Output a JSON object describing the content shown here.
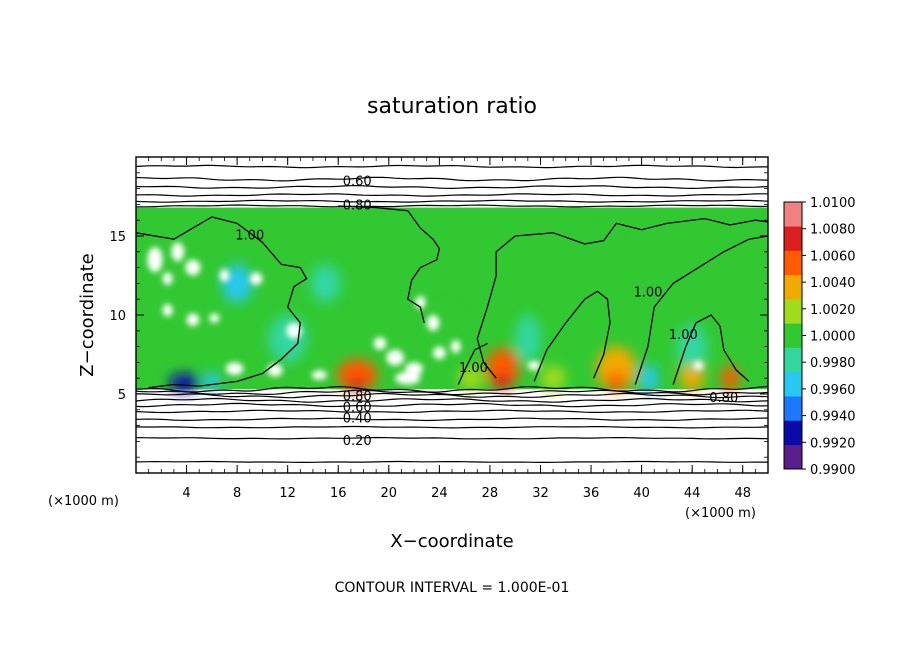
{
  "chart_data": {
    "type": "heatmap",
    "title": "saturation ratio",
    "xlabel": "X−coordinate",
    "ylabel": "Z−coordinate",
    "x_unit": "(×1000 m)",
    "y_unit": "(×1000 m)",
    "xlim": [
      0,
      50
    ],
    "ylim": [
      0,
      20
    ],
    "xticks": [
      4,
      8,
      12,
      16,
      20,
      24,
      28,
      32,
      36,
      40,
      44,
      48
    ],
    "yticks": [
      5,
      10,
      15
    ],
    "colorbar": {
      "levels": [
        0.99,
        0.992,
        0.994,
        0.996,
        0.998,
        1.0,
        1.002,
        1.004,
        1.006,
        1.008,
        1.01
      ],
      "tick_labels": [
        "0.9900",
        "0.9920",
        "0.9940",
        "0.9960",
        "0.9980",
        "1.0000",
        "1.0020",
        "1.0040",
        "1.0060",
        "1.0080",
        "1.0100"
      ],
      "colors": [
        "#5a1e8c",
        "#0a0aa8",
        "#1e78ff",
        "#28c8f0",
        "#32d7a0",
        "#32c832",
        "#a0dc1e",
        "#f0aa00",
        "#ff5a00",
        "#dc1e1e",
        "#f08282"
      ]
    },
    "shaded_region_z": [
      5.3,
      16.8
    ],
    "background_value": 1.0,
    "contour_interval": "1.000E-01",
    "contour_labels": [
      {
        "text": "0.60",
        "x": 17.5,
        "z": 18.5
      },
      {
        "text": "0.80",
        "x": 17.5,
        "z": 17.0
      },
      {
        "text": "1.00",
        "x": 9.0,
        "z": 15.1
      },
      {
        "text": "1.00",
        "x": 40.5,
        "z": 11.5
      },
      {
        "text": "1.00",
        "x": 43.3,
        "z": 8.8
      },
      {
        "text": "1.00",
        "x": 26.7,
        "z": 6.7
      },
      {
        "text": "0.80",
        "x": 17.5,
        "z": 4.9
      },
      {
        "text": "0.60",
        "x": 17.5,
        "z": 4.2
      },
      {
        "text": "0.40",
        "x": 17.5,
        "z": 3.5
      },
      {
        "text": "0.20",
        "x": 17.5,
        "z": 2.1
      },
      {
        "text": "0.80",
        "x": 46.5,
        "z": 4.8
      }
    ]
  },
  "footer": "CONTOUR INTERVAL = 1.000E-01"
}
